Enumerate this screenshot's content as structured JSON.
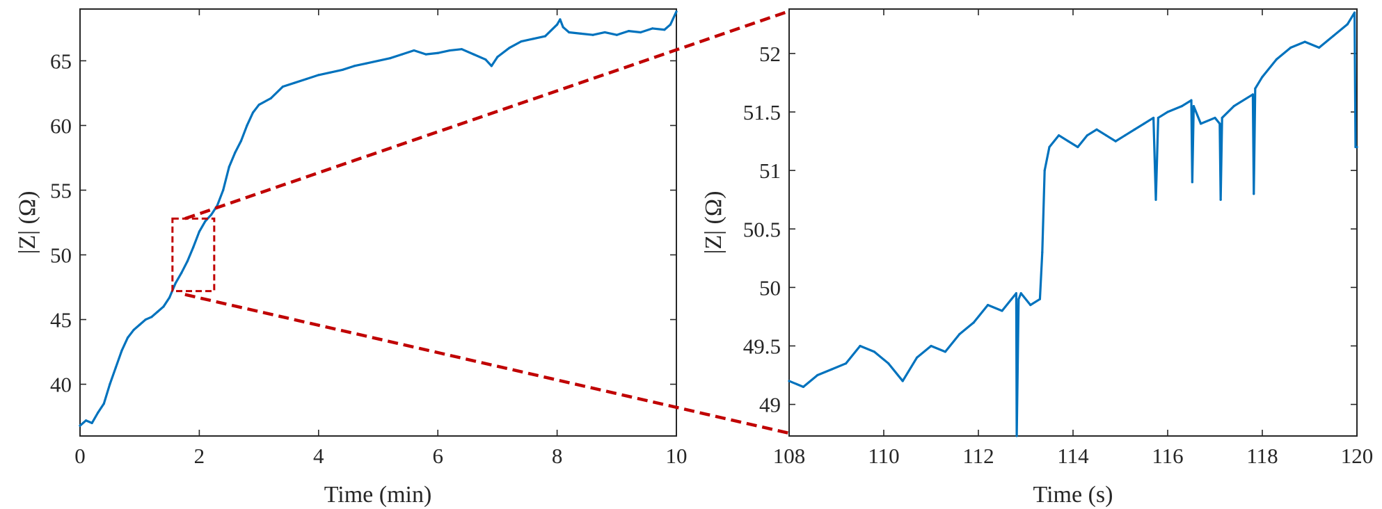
{
  "colors": {
    "series": "#0072BD",
    "zoom": "#C00000",
    "axes": "#262626"
  },
  "chart_data": [
    {
      "type": "line",
      "xlabel": "Time (min)",
      "ylabel": "|Z| (Ω)",
      "xlim": [
        0,
        10
      ],
      "ylim": [
        36,
        69
      ],
      "xticks": [
        0,
        2,
        4,
        6,
        8,
        10
      ],
      "xtick_labels": [
        "0",
        "2",
        "4",
        "6",
        "8",
        "10"
      ],
      "yticks": [
        40,
        45,
        50,
        55,
        60,
        65
      ],
      "ytick_labels": [
        "40",
        "45",
        "50",
        "55",
        "60",
        "65"
      ],
      "grid": false,
      "zoom_region": {
        "x": [
          1.55,
          2.25
        ],
        "y": [
          47.2,
          52.8
        ]
      },
      "series": [
        {
          "x": [
            0,
            0.1,
            0.2,
            0.3,
            0.4,
            0.5,
            0.6,
            0.7,
            0.8,
            0.9,
            1.0,
            1.1,
            1.2,
            1.3,
            1.4,
            1.5,
            1.6,
            1.7,
            1.8,
            1.9,
            2.0,
            2.1,
            2.2,
            2.3,
            2.4,
            2.5,
            2.6,
            2.7,
            2.8,
            2.9,
            3.0,
            3.2,
            3.4,
            3.6,
            3.8,
            4.0,
            4.2,
            4.4,
            4.6,
            4.8,
            5.0,
            5.2,
            5.4,
            5.6,
            5.8,
            6.0,
            6.2,
            6.4,
            6.6,
            6.8,
            6.9,
            7.0,
            7.2,
            7.4,
            7.6,
            7.8,
            8.0,
            8.05,
            8.1,
            8.2,
            8.4,
            8.6,
            8.8,
            9.0,
            9.2,
            9.4,
            9.6,
            9.8,
            9.9,
            10.0
          ],
          "y": [
            36.8,
            37.2,
            37.0,
            37.8,
            38.5,
            40.0,
            41.3,
            42.6,
            43.6,
            44.2,
            44.6,
            45.0,
            45.2,
            45.6,
            46.0,
            46.7,
            47.8,
            48.6,
            49.5,
            50.6,
            51.8,
            52.6,
            53.1,
            53.8,
            55.0,
            56.8,
            57.9,
            58.8,
            60.0,
            61.0,
            61.6,
            62.1,
            63.0,
            63.3,
            63.6,
            63.9,
            64.1,
            64.3,
            64.6,
            64.8,
            65.0,
            65.2,
            65.5,
            65.8,
            65.5,
            65.6,
            65.8,
            65.9,
            65.5,
            65.1,
            64.6,
            65.3,
            66.0,
            66.5,
            66.7,
            66.9,
            67.8,
            68.2,
            67.6,
            67.2,
            67.1,
            67.0,
            67.2,
            67.0,
            67.3,
            67.2,
            67.5,
            67.4,
            67.8,
            68.8
          ]
        }
      ]
    },
    {
      "type": "line",
      "xlabel": "Time (s)",
      "ylabel": "|Z| (Ω)",
      "xlim": [
        108,
        120
      ],
      "ylim": [
        48.73,
        52.38
      ],
      "xticks": [
        108,
        110,
        112,
        114,
        116,
        118,
        120
      ],
      "xtick_labels": [
        "108",
        "110",
        "112",
        "114",
        "116",
        "118",
        "120"
      ],
      "yticks": [
        49,
        49.5,
        50,
        50.5,
        51,
        51.5,
        52
      ],
      "ytick_labels": [
        "49",
        "49.5",
        "50",
        "50.5",
        "51",
        "51.5",
        "52"
      ],
      "grid": false,
      "series": [
        {
          "x": [
            108.0,
            108.3,
            108.6,
            108.9,
            109.2,
            109.5,
            109.8,
            110.1,
            110.4,
            110.7,
            111.0,
            111.3,
            111.6,
            111.9,
            112.2,
            112.5,
            112.7,
            112.8,
            112.81,
            112.85,
            112.9,
            113.1,
            113.3,
            113.35,
            113.4,
            113.5,
            113.7,
            113.9,
            114.1,
            114.3,
            114.5,
            114.7,
            114.9,
            115.1,
            115.3,
            115.5,
            115.7,
            115.75,
            115.8,
            116.0,
            116.3,
            116.5,
            116.52,
            116.55,
            116.7,
            117.0,
            117.1,
            117.12,
            117.15,
            117.4,
            117.8,
            117.82,
            117.85,
            118.0,
            118.3,
            118.6,
            118.9,
            119.2,
            119.5,
            119.8,
            119.95,
            119.97,
            120.0
          ],
          "y": [
            49.2,
            49.15,
            49.25,
            49.3,
            49.35,
            49.5,
            49.45,
            49.35,
            49.2,
            49.4,
            49.5,
            49.45,
            49.6,
            49.7,
            49.85,
            49.8,
            49.9,
            49.95,
            48.73,
            49.9,
            49.95,
            49.85,
            49.9,
            50.3,
            51.0,
            51.2,
            51.3,
            51.25,
            51.2,
            51.3,
            51.35,
            51.3,
            51.25,
            51.3,
            51.35,
            51.4,
            51.45,
            50.75,
            51.45,
            51.5,
            51.55,
            51.6,
            50.9,
            51.55,
            51.4,
            51.45,
            51.4,
            50.75,
            51.45,
            51.55,
            51.65,
            50.8,
            51.7,
            51.8,
            51.95,
            52.05,
            52.1,
            52.05,
            52.15,
            52.25,
            52.35,
            51.2,
            51.2
          ]
        }
      ]
    }
  ]
}
